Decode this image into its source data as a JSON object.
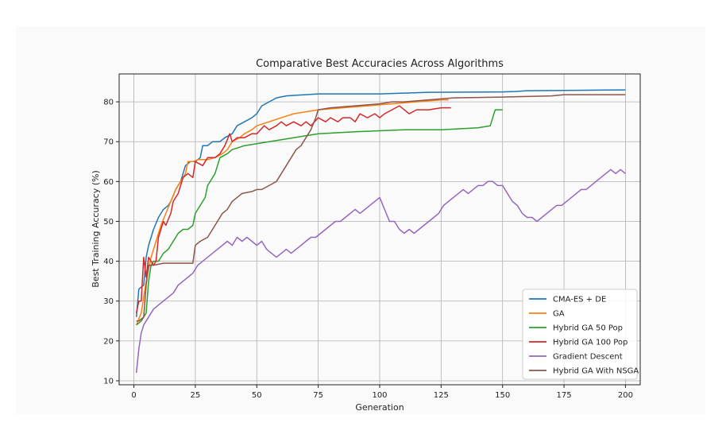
{
  "chart_data": {
    "type": "line",
    "title": "Comparative Best Accuracies Across Algorithms",
    "xlabel": "Generation",
    "ylabel": "Best Training Accuracy (%)",
    "xlim": [
      -6,
      206
    ],
    "ylim": [
      9,
      87
    ],
    "xticks": [
      0,
      25,
      50,
      75,
      100,
      125,
      150,
      175,
      200
    ],
    "yticks": [
      10,
      20,
      30,
      40,
      50,
      60,
      70,
      80
    ],
    "grid": true,
    "legend_position": "bottom-right",
    "series": [
      {
        "name": "CMA-ES + DE",
        "color": "#1f77b4",
        "points": [
          [
            1,
            26
          ],
          [
            2,
            33
          ],
          [
            4,
            34
          ],
          [
            5,
            41
          ],
          [
            6,
            44
          ],
          [
            8,
            48
          ],
          [
            10,
            51
          ],
          [
            12,
            53
          ],
          [
            14,
            54
          ],
          [
            15,
            55
          ],
          [
            17,
            58
          ],
          [
            19,
            60
          ],
          [
            21,
            64
          ],
          [
            23,
            65
          ],
          [
            25,
            65
          ],
          [
            27,
            66
          ],
          [
            28,
            69
          ],
          [
            30,
            69
          ],
          [
            32,
            70
          ],
          [
            35,
            70
          ],
          [
            37,
            71
          ],
          [
            40,
            72
          ],
          [
            42,
            74
          ],
          [
            45,
            75
          ],
          [
            48,
            76
          ],
          [
            50,
            77
          ],
          [
            52,
            79
          ],
          [
            55,
            80
          ],
          [
            58,
            81
          ],
          [
            62,
            81.5
          ],
          [
            70,
            81.8
          ],
          [
            75,
            82
          ],
          [
            90,
            82
          ],
          [
            100,
            82
          ],
          [
            110,
            82.2
          ],
          [
            120,
            82.4
          ],
          [
            150,
            82.5
          ],
          [
            155,
            82.6
          ],
          [
            160,
            82.8
          ],
          [
            180,
            82.9
          ],
          [
            200,
            83
          ]
        ]
      },
      {
        "name": "GA",
        "color": "#ff7f0e",
        "points": [
          [
            1,
            24
          ],
          [
            3,
            27
          ],
          [
            5,
            35
          ],
          [
            7,
            41
          ],
          [
            9,
            45
          ],
          [
            11,
            49
          ],
          [
            13,
            52
          ],
          [
            15,
            55
          ],
          [
            17,
            58
          ],
          [
            19,
            60
          ],
          [
            21,
            62
          ],
          [
            22,
            65
          ],
          [
            24,
            65
          ],
          [
            26,
            65.5
          ],
          [
            30,
            65.5
          ],
          [
            33,
            66
          ],
          [
            36,
            67
          ],
          [
            38,
            68
          ],
          [
            40,
            70
          ],
          [
            43,
            71
          ],
          [
            45,
            72
          ],
          [
            48,
            73
          ],
          [
            50,
            74
          ],
          [
            55,
            75
          ],
          [
            60,
            76
          ],
          [
            65,
            77
          ],
          [
            70,
            77.5
          ],
          [
            75,
            78
          ],
          [
            85,
            78.5
          ],
          [
            95,
            79
          ],
          [
            105,
            79.5
          ],
          [
            115,
            80
          ],
          [
            125,
            80.5
          ],
          [
            128,
            80.5
          ]
        ]
      },
      {
        "name": "Hybrid GA 50 Pop",
        "color": "#2ca02c",
        "points": [
          [
            1,
            24
          ],
          [
            3,
            25
          ],
          [
            5,
            27
          ],
          [
            6,
            35
          ],
          [
            7,
            39
          ],
          [
            8,
            40
          ],
          [
            10,
            40
          ],
          [
            12,
            42
          ],
          [
            14,
            43
          ],
          [
            16,
            45
          ],
          [
            18,
            47
          ],
          [
            20,
            48
          ],
          [
            22,
            48
          ],
          [
            24,
            49
          ],
          [
            25,
            52
          ],
          [
            27,
            54
          ],
          [
            29,
            56
          ],
          [
            30,
            59
          ],
          [
            33,
            62
          ],
          [
            35,
            66
          ],
          [
            38,
            67
          ],
          [
            40,
            68
          ],
          [
            45,
            69
          ],
          [
            50,
            69.5
          ],
          [
            55,
            70
          ],
          [
            60,
            70.5
          ],
          [
            65,
            71
          ],
          [
            70,
            71.5
          ],
          [
            75,
            72
          ],
          [
            90,
            72.5
          ],
          [
            110,
            73
          ],
          [
            125,
            73
          ],
          [
            140,
            73.5
          ],
          [
            145,
            74
          ],
          [
            147,
            78
          ],
          [
            150,
            78
          ]
        ]
      },
      {
        "name": "Hybrid GA 100 Pop",
        "color": "#d62728",
        "points": [
          [
            1,
            27
          ],
          [
            2,
            30
          ],
          [
            3,
            30
          ],
          [
            4,
            41
          ],
          [
            5,
            36
          ],
          [
            6,
            41
          ],
          [
            8,
            39
          ],
          [
            9,
            40
          ],
          [
            10,
            46
          ],
          [
            12,
            50
          ],
          [
            13,
            49
          ],
          [
            15,
            52
          ],
          [
            16,
            55
          ],
          [
            18,
            57
          ],
          [
            20,
            61
          ],
          [
            22,
            62
          ],
          [
            24,
            61
          ],
          [
            25,
            65
          ],
          [
            28,
            64
          ],
          [
            30,
            66
          ],
          [
            33,
            66
          ],
          [
            35,
            67
          ],
          [
            37,
            69
          ],
          [
            39,
            72
          ],
          [
            40,
            70
          ],
          [
            42,
            71
          ],
          [
            45,
            71
          ],
          [
            48,
            72
          ],
          [
            50,
            72
          ],
          [
            53,
            74
          ],
          [
            55,
            73
          ],
          [
            58,
            74
          ],
          [
            60,
            75
          ],
          [
            62,
            74
          ],
          [
            65,
            75
          ],
          [
            68,
            74
          ],
          [
            70,
            75
          ],
          [
            72,
            74
          ],
          [
            75,
            76
          ],
          [
            78,
            75
          ],
          [
            80,
            76
          ],
          [
            83,
            75
          ],
          [
            85,
            76
          ],
          [
            88,
            76
          ],
          [
            90,
            75
          ],
          [
            92,
            77
          ],
          [
            95,
            76
          ],
          [
            98,
            77
          ],
          [
            100,
            76
          ],
          [
            102,
            77
          ],
          [
            105,
            78
          ],
          [
            108,
            79
          ],
          [
            110,
            78
          ],
          [
            112,
            77
          ],
          [
            115,
            78
          ],
          [
            118,
            78
          ],
          [
            120,
            78
          ],
          [
            125,
            78.5
          ],
          [
            129,
            78.5
          ]
        ]
      },
      {
        "name": "Gradient Descent",
        "color": "#9467bd",
        "points": [
          [
            1,
            12
          ],
          [
            2,
            18
          ],
          [
            3,
            22
          ],
          [
            4,
            24
          ],
          [
            6,
            26
          ],
          [
            8,
            28
          ],
          [
            10,
            29
          ],
          [
            12,
            30
          ],
          [
            14,
            31
          ],
          [
            16,
            32
          ],
          [
            18,
            34
          ],
          [
            20,
            35
          ],
          [
            22,
            36
          ],
          [
            24,
            37
          ],
          [
            26,
            39
          ],
          [
            28,
            40
          ],
          [
            30,
            41
          ],
          [
            32,
            42
          ],
          [
            34,
            43
          ],
          [
            36,
            44
          ],
          [
            38,
            45
          ],
          [
            40,
            44
          ],
          [
            42,
            46
          ],
          [
            44,
            45
          ],
          [
            46,
            46
          ],
          [
            48,
            45
          ],
          [
            50,
            44
          ],
          [
            52,
            45
          ],
          [
            54,
            43
          ],
          [
            56,
            42
          ],
          [
            58,
            41
          ],
          [
            60,
            42
          ],
          [
            62,
            43
          ],
          [
            64,
            42
          ],
          [
            66,
            43
          ],
          [
            68,
            44
          ],
          [
            70,
            45
          ],
          [
            72,
            46
          ],
          [
            74,
            46
          ],
          [
            76,
            47
          ],
          [
            78,
            48
          ],
          [
            80,
            49
          ],
          [
            82,
            50
          ],
          [
            84,
            50
          ],
          [
            86,
            51
          ],
          [
            88,
            52
          ],
          [
            90,
            53
          ],
          [
            92,
            52
          ],
          [
            94,
            53
          ],
          [
            96,
            54
          ],
          [
            98,
            55
          ],
          [
            100,
            56
          ],
          [
            102,
            53
          ],
          [
            104,
            50
          ],
          [
            106,
            50
          ],
          [
            108,
            48
          ],
          [
            110,
            47
          ],
          [
            112,
            48
          ],
          [
            114,
            47
          ],
          [
            116,
            48
          ],
          [
            118,
            49
          ],
          [
            120,
            50
          ],
          [
            122,
            51
          ],
          [
            124,
            52
          ],
          [
            126,
            54
          ],
          [
            128,
            55
          ],
          [
            130,
            56
          ],
          [
            132,
            57
          ],
          [
            134,
            58
          ],
          [
            136,
            57
          ],
          [
            138,
            58
          ],
          [
            140,
            59
          ],
          [
            142,
            59
          ],
          [
            144,
            60
          ],
          [
            146,
            60
          ],
          [
            148,
            59
          ],
          [
            150,
            59
          ],
          [
            152,
            57
          ],
          [
            154,
            55
          ],
          [
            156,
            54
          ],
          [
            158,
            52
          ],
          [
            160,
            51
          ],
          [
            162,
            51
          ],
          [
            164,
            50
          ],
          [
            166,
            51
          ],
          [
            168,
            52
          ],
          [
            170,
            53
          ],
          [
            172,
            54
          ],
          [
            174,
            54
          ],
          [
            176,
            55
          ],
          [
            178,
            56
          ],
          [
            180,
            57
          ],
          [
            182,
            58
          ],
          [
            184,
            58
          ],
          [
            186,
            59
          ],
          [
            188,
            60
          ],
          [
            190,
            61
          ],
          [
            192,
            62
          ],
          [
            194,
            63
          ],
          [
            196,
            62
          ],
          [
            198,
            63
          ],
          [
            200,
            62
          ]
        ]
      },
      {
        "name": "Hybrid GA With NSGA",
        "color": "#8c564b",
        "points": [
          [
            1,
            25
          ],
          [
            2,
            25
          ],
          [
            4,
            26
          ],
          [
            5,
            34
          ],
          [
            6,
            39
          ],
          [
            8,
            39
          ],
          [
            12,
            39.5
          ],
          [
            18,
            39.5
          ],
          [
            24,
            39.5
          ],
          [
            25,
            44
          ],
          [
            27,
            45
          ],
          [
            30,
            46
          ],
          [
            32,
            48
          ],
          [
            34,
            50
          ],
          [
            36,
            52
          ],
          [
            38,
            53
          ],
          [
            40,
            55
          ],
          [
            42,
            56
          ],
          [
            44,
            57
          ],
          [
            48,
            57.5
          ],
          [
            50,
            58
          ],
          [
            52,
            58
          ],
          [
            55,
            59
          ],
          [
            58,
            60
          ],
          [
            60,
            62
          ],
          [
            62,
            64
          ],
          [
            64,
            66
          ],
          [
            66,
            68
          ],
          [
            68,
            69
          ],
          [
            70,
            71
          ],
          [
            72,
            73
          ],
          [
            74,
            76
          ],
          [
            75,
            78
          ],
          [
            80,
            78.5
          ],
          [
            90,
            79
          ],
          [
            100,
            79.5
          ],
          [
            105,
            80
          ],
          [
            110,
            80
          ],
          [
            120,
            80.5
          ],
          [
            130,
            81
          ],
          [
            150,
            81.2
          ],
          [
            170,
            81.5
          ],
          [
            175,
            81.8
          ],
          [
            200,
            81.8
          ]
        ]
      }
    ]
  }
}
